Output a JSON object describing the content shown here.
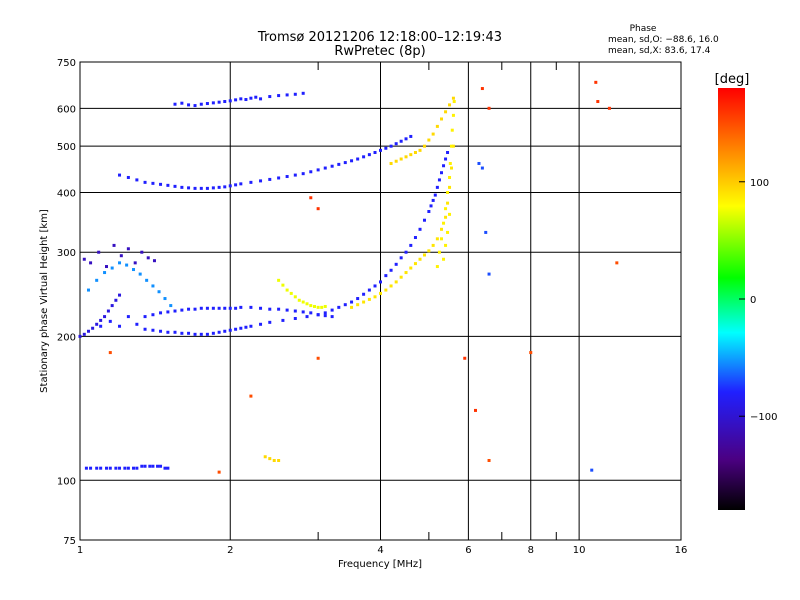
{
  "chart_data": {
    "type": "scatter",
    "title": "Tromsø 20121206 12:18:00–12:19:43",
    "subtitle": "RwPretec (8p)",
    "xlabel": "Frequency [MHz]",
    "ylabel": "Stationary phase Virtual Height [km]",
    "xscale": "log",
    "yscale": "log",
    "xlim": [
      1,
      16
    ],
    "ylim": [
      75,
      750
    ],
    "xticks": [
      1,
      2,
      4,
      6,
      8,
      10,
      16
    ],
    "xtick_labels": [
      "1",
      "2",
      "4",
      "6",
      "8",
      "10",
      "16"
    ],
    "x_gridlines": [
      2,
      4,
      6,
      8,
      10
    ],
    "x_minor_ticks": [
      3,
      5,
      7,
      9
    ],
    "yticks": [
      75,
      100,
      200,
      300,
      400,
      500,
      600,
      750
    ],
    "ytick_labels": [
      "75",
      "100",
      "200",
      "300",
      "400",
      "500",
      "600",
      "750"
    ],
    "y_gridlines": [
      100,
      200,
      300,
      400,
      500,
      600
    ],
    "grid": true,
    "stats": {
      "heading": "Phase",
      "line_o": "mean, sd,O: −88.6, 16.0",
      "line_x": "mean, sd,X:  83.6, 17.4"
    },
    "colorbar": {
      "label": "[deg]",
      "ticks": [
        100,
        0,
        -100
      ],
      "tick_labels": [
        "100",
        "0",
        "−100"
      ],
      "range": [
        -180,
        180
      ],
      "colors": [
        "#000000",
        "#4b0082",
        "#2020ff",
        "#00ffff",
        "#00ff00",
        "#ffff00",
        "#ff8000",
        "#ff0000"
      ]
    },
    "series": [
      {
        "phase": -100,
        "x": [
          1.1,
          1.15,
          1.2,
          1.25,
          1.3,
          1.35,
          1.4,
          1.45,
          1.5,
          1.55,
          1.6,
          1.65,
          1.7,
          1.75,
          1.8,
          1.85,
          1.9,
          1.95,
          2.0,
          2.05,
          2.1,
          2.15,
          2.2,
          2.3,
          2.4,
          2.55,
          2.7,
          2.85,
          3.0,
          3.1,
          3.2,
          3.3,
          3.4,
          3.5,
          3.6,
          3.7,
          3.8,
          3.9,
          4.0,
          4.1,
          4.2,
          4.3,
          4.4,
          4.5,
          4.6,
          4.7,
          4.8,
          4.9,
          5.0,
          5.05,
          5.1,
          5.15,
          5.2,
          5.25,
          5.3,
          5.35,
          5.4,
          5.45
        ],
        "y": [
          210,
          215,
          210,
          220,
          212,
          207,
          206,
          205,
          204,
          204,
          203,
          203,
          202,
          202,
          202,
          203,
          204,
          205,
          206,
          207,
          208,
          209,
          210,
          212,
          214,
          216,
          218,
          220,
          222,
          224,
          227,
          230,
          233,
          236,
          240,
          245,
          250,
          255,
          260,
          268,
          275,
          283,
          292,
          300,
          310,
          322,
          335,
          350,
          365,
          375,
          385,
          395,
          410,
          425,
          440,
          455,
          470,
          485
        ]
      },
      {
        "phase": -100,
        "x": [
          1.35,
          1.4,
          1.45,
          1.5,
          1.55,
          1.6,
          1.65,
          1.7,
          1.75,
          1.8,
          1.85,
          1.9,
          1.95,
          2.0,
          2.05,
          2.1,
          2.2,
          2.3,
          2.4,
          2.5,
          2.6,
          2.7,
          2.8,
          2.9,
          3.0,
          3.1,
          3.2
        ],
        "y": [
          220,
          222,
          224,
          225,
          226,
          227,
          228,
          228,
          229,
          229,
          229,
          229,
          229,
          229,
          229,
          230,
          230,
          229,
          228,
          228,
          227,
          226,
          225,
          224,
          222,
          221,
          220
        ]
      },
      {
        "phase": -100,
        "x": [
          1.2,
          1.25,
          1.3,
          1.35,
          1.4,
          1.45,
          1.5,
          1.55,
          1.6,
          1.65,
          1.7,
          1.75,
          1.8,
          1.85,
          1.9,
          1.95,
          2.0,
          2.05,
          2.1,
          2.2,
          2.3,
          2.4,
          2.5,
          2.6,
          2.7,
          2.8,
          2.9,
          3.0,
          3.1,
          3.2,
          3.3,
          3.4,
          3.5,
          3.6,
          3.7,
          3.8,
          3.9,
          4.0,
          4.1,
          4.2,
          4.3,
          4.4,
          4.5,
          4.6
        ],
        "y": [
          435,
          430,
          425,
          420,
          418,
          416,
          414,
          412,
          410,
          409,
          408,
          408,
          408,
          409,
          410,
          411,
          413,
          415,
          417,
          420,
          423,
          426,
          429,
          432,
          435,
          438,
          442,
          446,
          450,
          454,
          458,
          462,
          466,
          470,
          475,
          480,
          485,
          490,
          495,
          500,
          506,
          512,
          518,
          524
        ]
      },
      {
        "phase": -100,
        "x": [
          1.55,
          1.6,
          1.65,
          1.7,
          1.75,
          1.8,
          1.85,
          1.9,
          1.95,
          2.0,
          2.05,
          2.1,
          2.15,
          2.2,
          2.25,
          2.3,
          2.4,
          2.5,
          2.6,
          2.7,
          2.8
        ],
        "y": [
          612,
          615,
          610,
          608,
          612,
          614,
          616,
          618,
          620,
          622,
          625,
          628,
          626,
          630,
          633,
          628,
          635,
          638,
          640,
          642,
          645
        ]
      },
      {
        "phase": -100,
        "x": [
          1.03,
          1.05,
          1.08,
          1.1,
          1.13,
          1.15,
          1.18,
          1.2,
          1.23,
          1.25,
          1.28,
          1.3,
          1.33,
          1.35,
          1.38,
          1.4,
          1.43,
          1.45,
          1.48,
          1.5
        ],
        "y": [
          106,
          106,
          106,
          106,
          106,
          106,
          106,
          106,
          106,
          106,
          106,
          106,
          107,
          107,
          107,
          107,
          107,
          107,
          106,
          106
        ]
      },
      {
        "phase": -110,
        "x": [
          1.0,
          1.02,
          1.04,
          1.06,
          1.08,
          1.1,
          1.12,
          1.14,
          1.16,
          1.18,
          1.2
        ],
        "y": [
          200,
          202,
          205,
          208,
          212,
          216,
          220,
          226,
          232,
          238,
          244
        ]
      },
      {
        "phase": -75,
        "x": [
          1.04,
          1.08,
          1.12,
          1.16,
          1.2,
          1.24,
          1.28,
          1.32,
          1.36,
          1.4,
          1.44,
          1.48,
          1.52
        ],
        "y": [
          250,
          262,
          272,
          278,
          285,
          282,
          276,
          270,
          262,
          255,
          248,
          240,
          232
        ]
      },
      {
        "phase": -120,
        "x": [
          1.02,
          1.05,
          1.09,
          1.13,
          1.17,
          1.21,
          1.25,
          1.29,
          1.33,
          1.37,
          1.41
        ],
        "y": [
          290,
          285,
          300,
          280,
          310,
          295,
          305,
          285,
          300,
          292,
          288
        ]
      },
      {
        "phase": 75,
        "x": [
          2.5,
          2.55,
          2.6,
          2.65,
          2.7,
          2.75,
          2.8,
          2.85,
          2.9,
          2.95,
          3.0,
          3.05,
          3.1
        ],
        "y": [
          262,
          256,
          250,
          246,
          242,
          238,
          236,
          234,
          232,
          231,
          230,
          230,
          231
        ]
      },
      {
        "phase": 90,
        "x": [
          3.5,
          3.6,
          3.7,
          3.8,
          3.9,
          4.0,
          4.1,
          4.2,
          4.3,
          4.4,
          4.5,
          4.6,
          4.7,
          4.8,
          4.9,
          5.0,
          5.1,
          5.2,
          5.3,
          5.4,
          5.45,
          5.5,
          5.55,
          5.6
        ],
        "y": [
          230,
          233,
          236,
          239,
          242,
          246,
          250,
          255,
          260,
          266,
          272,
          278,
          284,
          290,
          296,
          302,
          310,
          320,
          335,
          355,
          380,
          410,
          450,
          500
        ]
      },
      {
        "phase": 85,
        "x": [
          5.2,
          5.25,
          5.3,
          5.35,
          5.4,
          5.45,
          5.5,
          5.52,
          5.55,
          5.57,
          5.6,
          5.62,
          5.5,
          5.45,
          5.4,
          5.35
        ],
        "y": [
          280,
          300,
          320,
          345,
          370,
          400,
          430,
          460,
          500,
          540,
          580,
          620,
          360,
          330,
          310,
          290
        ]
      },
      {
        "phase": 95,
        "x": [
          4.2,
          4.3,
          4.4,
          4.5,
          4.6,
          4.7,
          4.8,
          4.9,
          5.0,
          5.1,
          5.2,
          5.3,
          5.4,
          5.5,
          5.6
        ],
        "y": [
          460,
          465,
          470,
          475,
          480,
          485,
          490,
          500,
          515,
          530,
          550,
          570,
          590,
          610,
          630
        ]
      },
      {
        "phase": 95,
        "x": [
          2.35,
          2.4,
          2.45,
          2.5
        ],
        "y": [
          112,
          111,
          110,
          110
        ]
      },
      {
        "phase": 160,
        "x": [
          6.4,
          6.6,
          10.8,
          10.9,
          11.5,
          5.9,
          6.2,
          2.9,
          3.0
        ],
        "y": [
          660,
          600,
          680,
          620,
          600,
          180,
          140,
          390,
          370
        ]
      },
      {
        "phase": -90,
        "x": [
          6.3,
          6.4,
          6.6,
          10.6,
          6.5
        ],
        "y": [
          460,
          450,
          270,
          105,
          330
        ]
      },
      {
        "phase": 150,
        "x": [
          1.15,
          3.0,
          6.6,
          8.0,
          11.9,
          1.9,
          2.2
        ],
        "y": [
          185,
          180,
          110,
          185,
          285,
          104,
          150
        ]
      }
    ]
  }
}
